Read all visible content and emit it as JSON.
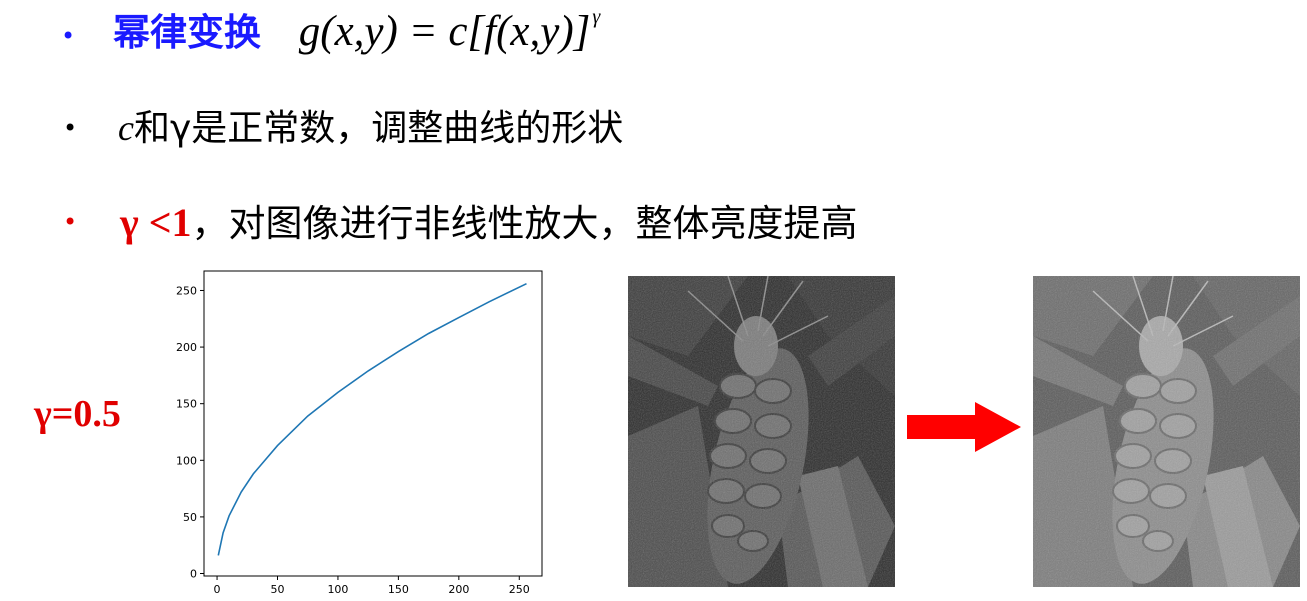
{
  "bullets": [
    {
      "symbol": "•",
      "color": "#1a1aff"
    },
    {
      "symbol": "•",
      "color": "#000000"
    },
    {
      "symbol": "•",
      "color": "#e00000"
    }
  ],
  "line1": {
    "title": "幂律变换",
    "formula_main": "g(x,y) = c[f(x,y)]",
    "formula_exp": "γ"
  },
  "line2": {
    "var_c": "c",
    "rest": "和γ是正常数，调整曲线的形状"
  },
  "line3": {
    "condition": "γ <1",
    "rest": "，对图像进行非线性放大，整体亮度提高"
  },
  "gamma_label": "γ=0.5",
  "chart_data": {
    "type": "line",
    "title": "",
    "xlabel": "",
    "ylabel": "",
    "xlim": [
      0,
      256
    ],
    "ylim": [
      0,
      260
    ],
    "xticks": [
      "0",
      "50",
      "100",
      "150",
      "200",
      "250"
    ],
    "yticks": [
      "0",
      "50",
      "100",
      "150",
      "200",
      "250"
    ],
    "series": [
      {
        "color": "#1f77b4",
        "x": [
          1,
          5,
          10,
          20,
          30,
          50,
          75,
          100,
          125,
          150,
          175,
          200,
          225,
          256
        ],
        "y": [
          16,
          36,
          51,
          72,
          88,
          113,
          139,
          160,
          179,
          196,
          212,
          226,
          240,
          256
        ]
      }
    ]
  },
  "images": {
    "before": "wheat-spike-grayscale-original",
    "after": "wheat-spike-grayscale-brightened"
  },
  "arrow_color": "#ff0000"
}
